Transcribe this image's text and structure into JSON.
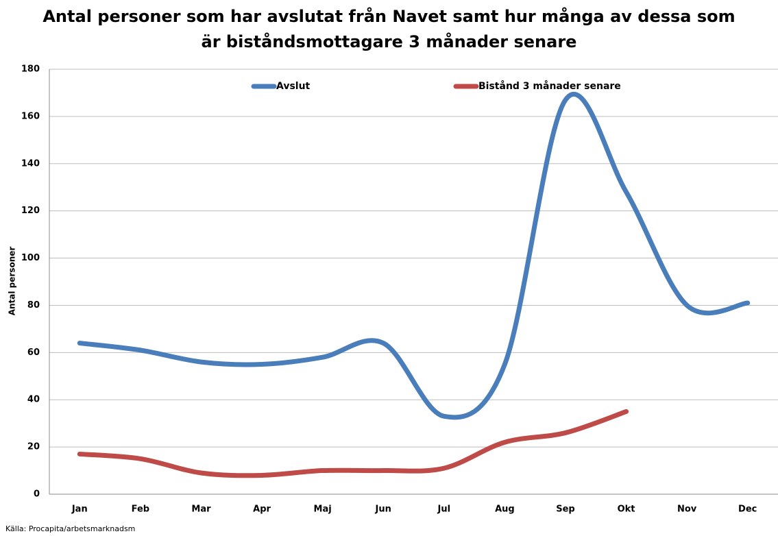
{
  "chart_data": {
    "type": "line",
    "title": "Antal personer som har avslutat från Navet samt hur många av dessa som är biståndsmottagare 3 månader senare",
    "y_label": "Antal personer",
    "source": "Källa: Procapita/arbetsmarknadsm",
    "categories": [
      "Jan",
      "Feb",
      "Mar",
      "Apr",
      "Maj",
      "Jun",
      "Jul",
      "Aug",
      "Sep",
      "Okt",
      "Nov",
      "Dec"
    ],
    "series": [
      {
        "name": "Avslut",
        "color": "#4a7ebb",
        "values": [
          64,
          61,
          56,
          55,
          58,
          64,
          33,
          55,
          167,
          128,
          80,
          81
        ]
      },
      {
        "name": "Bistånd 3 månader senare",
        "color": "#be4b48",
        "values": [
          17,
          15,
          9,
          8,
          10,
          10,
          11,
          22,
          26,
          35,
          null,
          null
        ]
      }
    ],
    "ylim": [
      0,
      180
    ],
    "yticks": [
      0,
      20,
      40,
      60,
      80,
      100,
      120,
      140,
      160,
      180
    ],
    "grid": true,
    "smooth": true,
    "legend": "top"
  }
}
